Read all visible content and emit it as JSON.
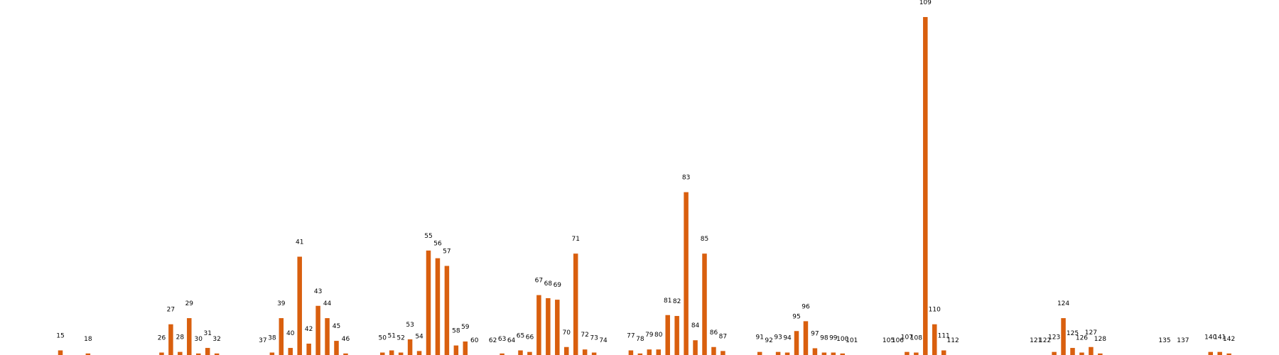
{
  "colors": {
    "bar": "#d95f0e",
    "background": "#ffffff"
  },
  "chart_data": {
    "type": "bar",
    "title": "",
    "xlabel": "",
    "ylabel": "",
    "ylim": [
      0,
      110
    ],
    "grid": false,
    "axes_visible": false,
    "categories": [
      "15",
      "18",
      "26",
      "27",
      "28",
      "29",
      "30",
      "31",
      "32",
      "37",
      "38",
      "39",
      "40",
      "41",
      "42",
      "43",
      "44",
      "45",
      "46",
      "50",
      "51",
      "52",
      "53",
      "54",
      "55",
      "56",
      "57",
      "58",
      "59",
      "60",
      "62",
      "63",
      "64",
      "65",
      "66",
      "67",
      "68",
      "69",
      "70",
      "71",
      "72",
      "73",
      "74",
      "77",
      "78",
      "79",
      "80",
      "81",
      "82",
      "83",
      "84",
      "85",
      "86",
      "87",
      "91",
      "92",
      "93",
      "94",
      "95",
      "96",
      "97",
      "98",
      "99",
      "100",
      "101",
      "105",
      "106",
      "107",
      "108",
      "109",
      "110",
      "111",
      "112",
      "121",
      "122",
      "123",
      "124",
      "125",
      "126",
      "127",
      "128",
      "135",
      "137",
      "140",
      "141",
      "142"
    ],
    "values": [
      1.5,
      0.5,
      0.8,
      10,
      1,
      12,
      0.5,
      2.3,
      0.5,
      0,
      0.8,
      12,
      2.3,
      32,
      3.7,
      16,
      12,
      4.6,
      0.5,
      0.8,
      1.5,
      0.8,
      5.1,
      1.3,
      34,
      31.5,
      29,
      3.1,
      4.4,
      0,
      0,
      0.5,
      0,
      1.5,
      1,
      19.5,
      18.5,
      18,
      2.6,
      33,
      1.8,
      0.8,
      0,
      1.5,
      0.5,
      1.8,
      1.8,
      13,
      12.7,
      53,
      4.8,
      33,
      2.6,
      1.3,
      1,
      0,
      1,
      0.8,
      7.8,
      11,
      2.2,
      0.8,
      0.8,
      0.5,
      0,
      0,
      0,
      1,
      0.8,
      110,
      10,
      1.5,
      0,
      0,
      0,
      1,
      12,
      2.3,
      0.8,
      2.6,
      0.5,
      0,
      0,
      1,
      1,
      0.5
    ],
    "positions": [
      15,
      18,
      26,
      27,
      28,
      29,
      30,
      31,
      32,
      37,
      38,
      39,
      40,
      41,
      42,
      43,
      44,
      45,
      46,
      50,
      51,
      52,
      53,
      54,
      55,
      56,
      57,
      58,
      59,
      60,
      62,
      63,
      64,
      65,
      66,
      67,
      68,
      69,
      70,
      71,
      72,
      73,
      74,
      77,
      78,
      79,
      80,
      81,
      82,
      83,
      84,
      85,
      86,
      87,
      91,
      92,
      93,
      94,
      95,
      96,
      97,
      98,
      99,
      100,
      101,
      105,
      106,
      107,
      108,
      109,
      110,
      111,
      112,
      121,
      122,
      123,
      124,
      125,
      126,
      127,
      128,
      135,
      137,
      140,
      141,
      142
    ]
  }
}
